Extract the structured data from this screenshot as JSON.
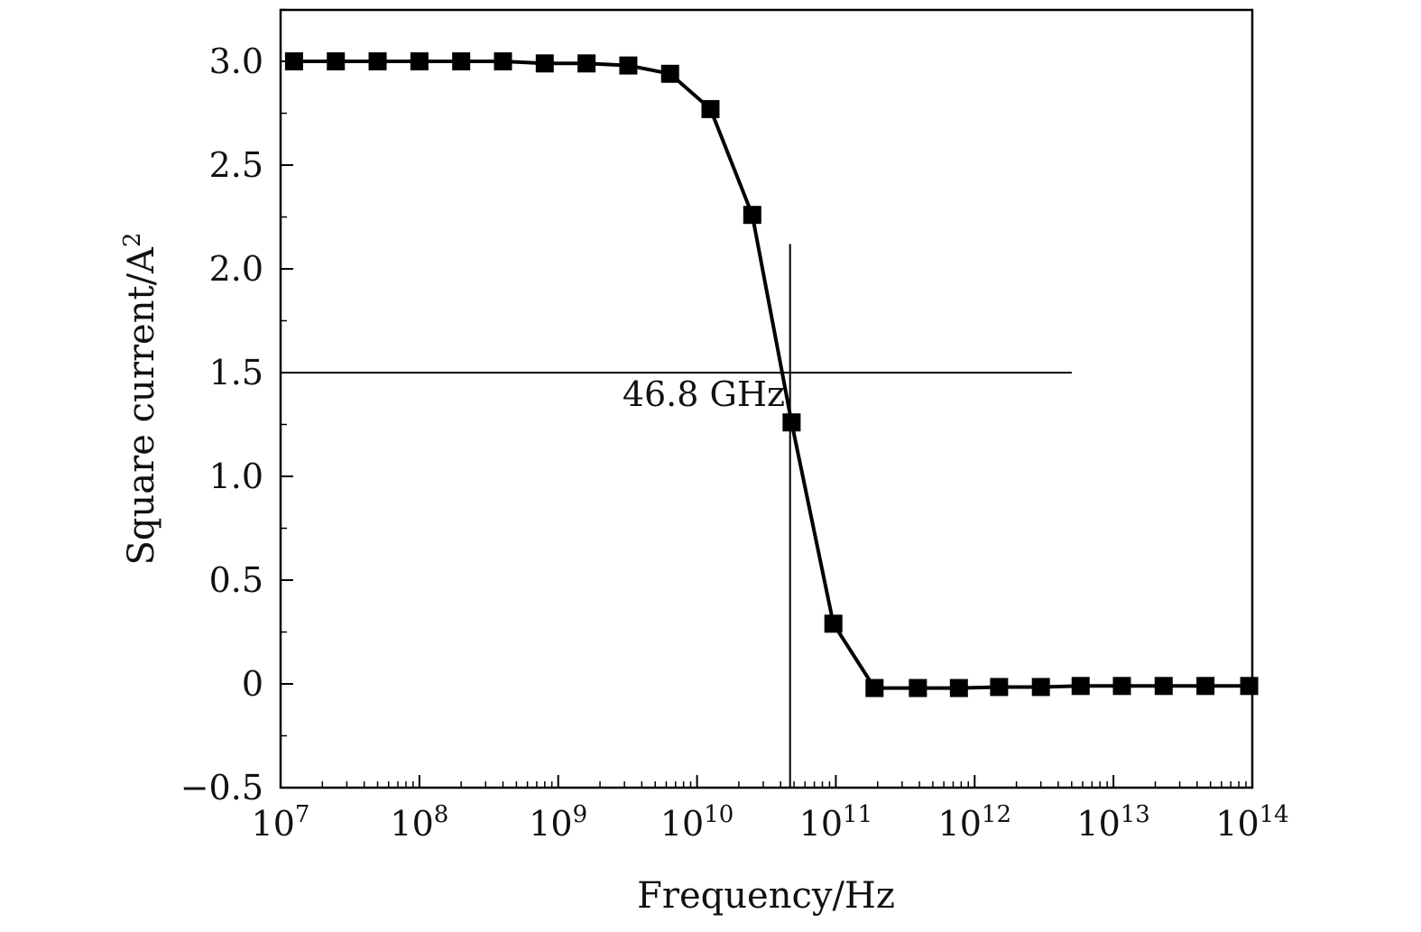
{
  "chart_data": {
    "type": "line",
    "xlabel": "Frequency/Hz",
    "ylabel_main": "Square current/A",
    "ylabel_sup": "2",
    "x_scale": "log",
    "xlim": [
      10000000.0,
      100000000000000.0
    ],
    "ylim": [
      -0.5,
      3.25
    ],
    "x_ticks": [
      {
        "value": 10000000.0,
        "base": "10",
        "exp": "7"
      },
      {
        "value": 100000000.0,
        "base": "10",
        "exp": "8"
      },
      {
        "value": 1000000000.0,
        "base": "10",
        "exp": "9"
      },
      {
        "value": 10000000000.0,
        "base": "10",
        "exp": "10"
      },
      {
        "value": 100000000000.0,
        "base": "10",
        "exp": "11"
      },
      {
        "value": 1000000000000.0,
        "base": "10",
        "exp": "12"
      },
      {
        "value": 10000000000000.0,
        "base": "10",
        "exp": "13"
      },
      {
        "value": 100000000000000.0,
        "base": "10",
        "exp": "14"
      }
    ],
    "y_ticks": [
      {
        "value": 3.0,
        "label": "3.0"
      },
      {
        "value": 2.5,
        "label": "2.5"
      },
      {
        "value": 2.0,
        "label": "2.0"
      },
      {
        "value": 1.5,
        "label": "1.5"
      },
      {
        "value": 1.0,
        "label": "1.0"
      },
      {
        "value": 0.5,
        "label": "0.5"
      },
      {
        "value": 0,
        "label": "0"
      },
      {
        "value": -0.5,
        "label": "−0.5"
      }
    ],
    "grid": false,
    "series": [
      {
        "marker": "square",
        "color": "#000000",
        "x": [
          12500000.0,
          25000000.0,
          50000000.0,
          100000000.0,
          200000000.0,
          400000000.0,
          800000000.0,
          1600000000.0,
          3200000000.0,
          6400000000.0,
          12500000000.0,
          25000000000.0,
          48000000000.0,
          96000000000.0,
          190000000000.0,
          390000000000.0,
          770000000000.0,
          1500000000000.0,
          3000000000000.0,
          5800000000000.0,
          11500000000000.0,
          23000000000000.0,
          46000000000000.0,
          95000000000000.0
        ],
        "y": [
          3.0,
          3.0,
          3.0,
          3.0,
          3.0,
          3.0,
          2.99,
          2.99,
          2.98,
          2.94,
          2.77,
          2.26,
          1.26,
          0.29,
          -0.02,
          -0.02,
          -0.02,
          -0.015,
          -0.015,
          -0.01,
          -0.01,
          -0.01,
          -0.01,
          -0.01
        ]
      }
    ],
    "annotations": {
      "hline_y": 1.5,
      "hline_x_end": 5000000000000.0,
      "vline_x": 46800000000.0,
      "vline_y_top": 2.12,
      "label": "46.8 GHz",
      "label_anchor_x": 43000000000.0,
      "label_anchor_y": 1.34
    }
  }
}
